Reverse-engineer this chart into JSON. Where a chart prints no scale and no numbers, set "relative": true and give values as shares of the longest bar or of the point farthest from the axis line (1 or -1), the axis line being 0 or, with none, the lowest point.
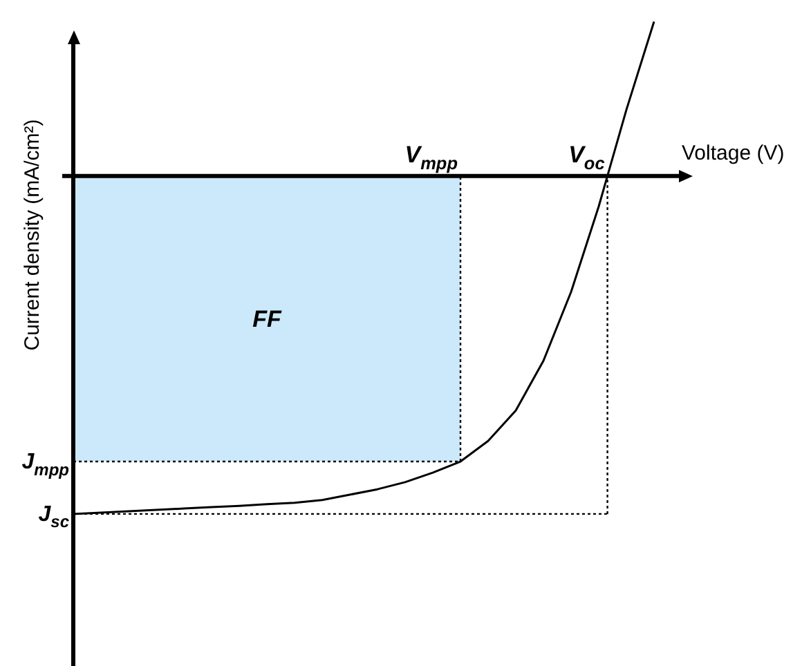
{
  "chart_data": {
    "type": "line",
    "relative": true,
    "xlabel": "Voltage (V)",
    "ylabel": "Current density (mA/cm²)",
    "marker": "none",
    "line_style": "solid",
    "categories": [
      null,
      null,
      null,
      null,
      null,
      null,
      null,
      null,
      null,
      null,
      null,
      null,
      null,
      null,
      null,
      null,
      null,
      null,
      null,
      null,
      null,
      null
    ],
    "series": [
      {
        "color": "#000000",
        "values": [
          -1,
          -0.996,
          -0.992,
          -0.988,
          -0.984,
          -0.98,
          -0.976,
          -0.971,
          -0.967,
          -0.959,
          -0.943,
          -0.927,
          -0.906,
          -0.878,
          -0.845,
          -0.784,
          -0.694,
          -0.547,
          -0.343,
          -0.09,
          0.196,
          0.457
        ]
      }
    ],
    "bands": [
      {
        "axis": "y",
        "from": -0.845,
        "to": 0,
        "label": "FF",
        "color": "#cce9fb"
      }
    ],
    "ref_lines": [
      {
        "axis": "y",
        "value": -0.845,
        "label": "J$_{mpp}$",
        "line_style": "dotted"
      },
      {
        "axis": "y",
        "value": -1,
        "label": "J$_{sc}$",
        "line_style": "dotted"
      }
    ],
    "annotations": [
      "V$_{mpp}$",
      "V$_{oc}$"
    ]
  }
}
